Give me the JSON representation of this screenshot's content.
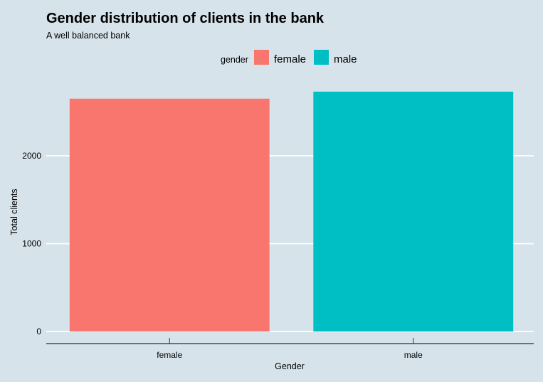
{
  "chart_data": {
    "type": "bar",
    "title": "Gender distribution of clients in the bank",
    "subtitle": "A well balanced bank",
    "xlabel": "Gender",
    "ylabel": "Total clients",
    "categories": [
      "female",
      "male"
    ],
    "values": [
      2650,
      2730
    ],
    "colors": [
      "#f8766d",
      "#00bfc4"
    ],
    "ylim": [
      0,
      2780
    ],
    "yticks": [
      0,
      1000,
      2000
    ],
    "ytick_labels": [
      "0",
      "1000",
      "2000"
    ],
    "grid": "horizontal major (white)",
    "legend": {
      "position": "top",
      "title": "gender",
      "entries": [
        "female",
        "male"
      ]
    },
    "background": "#d6e3ea"
  }
}
